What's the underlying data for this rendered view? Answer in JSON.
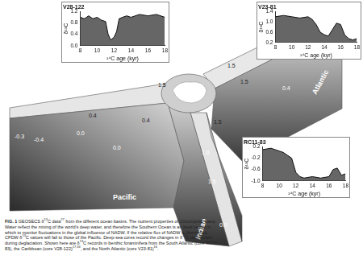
{
  "figure": {
    "basin_labels": [
      "Atlantic",
      "Pacific",
      "Indian"
    ],
    "contour_labels": [
      "1.5",
      "1.5",
      "1.0",
      "1.0",
      "0.4",
      "1.5",
      "0.4",
      "0.0",
      "-0.3",
      "-0.4",
      "0.0",
      "0.4",
      "1.0",
      "1.5",
      "1.5",
      "0.0"
    ],
    "caption": [
      {
        "bold": "FIG. 1"
      },
      {
        "text": " GEOSECS δ"
      },
      {
        "sup": "13"
      },
      {
        "text": "C data"
      },
      {
        "sup": "27"
      },
      {
        "text": " from the different ocean basins. The nutrient properties of Circumpolar Deep Water reflect the mixing of the world's deep water, and therefore the Southern Ocean is an ideal region in which to monitor fluctuations in the global influence of NADW. If the relative flux of NADW is diminished, CPDW δ"
      },
      {
        "sup": "13"
      },
      {
        "text": "C values will fall to those of the Pacific. Deep-sea cores record the changes in δ"
      },
      {
        "sup": "13"
      },
      {
        "text": "C distribution during deglaciation. Shown here are δ"
      },
      {
        "sup": "13"
      },
      {
        "text": "C records in benthic foraminifera from the South Atlantic (core RC11-83), the Caribbean (core V28-122)"
      },
      {
        "sup": "17,34"
      },
      {
        "text": ", and the North Atlantic (core V23-81)"
      },
      {
        "sup": "16"
      },
      {
        "text": "."
      }
    ]
  },
  "chart_data": [
    {
      "type": "area",
      "title": "V28-122",
      "xlabel": "¹⁴C age (kyr)",
      "ylabel": "δ¹³C",
      "x": [
        8,
        8.5,
        9,
        9.5,
        10,
        10.5,
        11,
        11.3,
        11.6,
        12,
        12.3,
        12.6,
        13,
        13.5,
        14,
        15,
        16,
        17,
        18
      ],
      "values": [
        1.0,
        0.95,
        1.05,
        0.95,
        1.0,
        0.9,
        0.85,
        0.4,
        0.2,
        0.3,
        0.5,
        0.95,
        1.0,
        1.05,
        1.0,
        1.1,
        1.05,
        1.1,
        1.0
      ],
      "color": "#666666",
      "xlim": [
        8,
        18
      ],
      "xticks": [
        8,
        10,
        12,
        14,
        16,
        18
      ],
      "ylim": [
        0,
        1.2
      ],
      "yticks": [
        {
          "value": 0,
          "label": "0.0"
        },
        0.4,
        0.8,
        1.2
      ],
      "grid": false
    },
    {
      "type": "area",
      "title": "V23-81",
      "xlabel": "¹⁴C age (kyr)",
      "ylabel": "δ¹³C",
      "x": [
        8,
        9,
        10,
        11,
        12,
        12.5,
        13,
        13.5,
        14,
        14.5,
        15,
        15.5,
        16,
        16.5,
        17,
        17.5,
        18
      ],
      "values": [
        1.2,
        1.25,
        1.2,
        1.15,
        1.2,
        1.1,
        0.9,
        0.6,
        0.5,
        0.45,
        0.7,
        0.95,
        0.9,
        0.5,
        0.35,
        0.3,
        0.35
      ],
      "color": "#666666",
      "xlim": [
        8,
        18
      ],
      "xticks": [
        8,
        10,
        12,
        14,
        16,
        18
      ],
      "ylim": [
        0.2,
        1.4
      ],
      "yticks": [
        0.2,
        0.6,
        {
          "value": 1,
          "label": "1.0"
        },
        1.4
      ],
      "grid": false
    },
    {
      "type": "area",
      "title": "RC11-83",
      "xlabel": "¹⁴C age (kyr)",
      "ylabel": "δ¹³C",
      "x": [
        8,
        9,
        10,
        10.5,
        11,
        11.5,
        12,
        12.5,
        13,
        14,
        15,
        16,
        16.5,
        17,
        17.5,
        18
      ],
      "values": [
        0.1,
        0.15,
        0.05,
        0.0,
        -0.1,
        -0.2,
        -0.7,
        -0.85,
        -0.9,
        -0.85,
        -0.9,
        -0.85,
        -0.6,
        -0.55,
        -0.8,
        -0.75
      ],
      "color": "#666666",
      "xlim": [
        8,
        18
      ],
      "xticks": [
        8,
        10,
        12,
        14,
        16,
        18
      ],
      "ylim": [
        -1.0,
        0.2
      ],
      "yticks": [
        {
          "value": -1,
          "label": "-1.0"
        },
        -0.6,
        -0.2,
        0.2
      ],
      "grid": false
    }
  ]
}
